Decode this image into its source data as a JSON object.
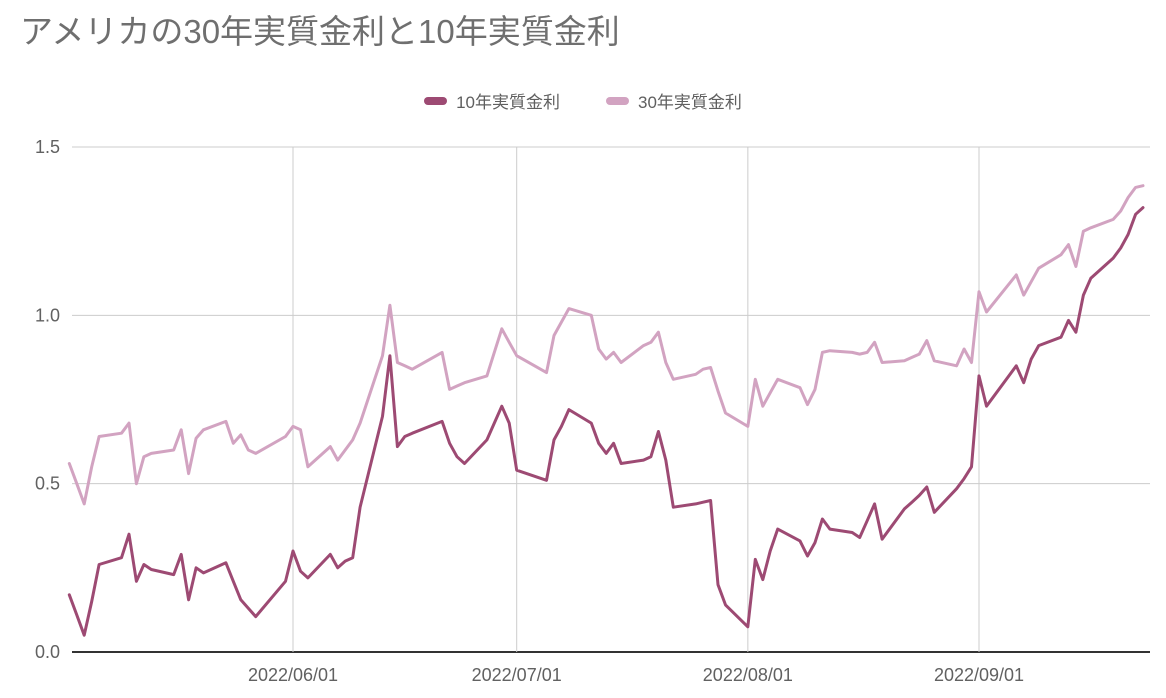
{
  "title": {
    "text": "アメリカの30年実質金利と10年実質金利"
  },
  "legend": {
    "items": [
      {
        "label": "10年実質金利",
        "color": "#9d4a73"
      },
      {
        "label": "30年実質金利",
        "color": "#d2a3c1"
      }
    ]
  },
  "chart_data": {
    "type": "line",
    "title": "アメリカの30年実質金利と10年実質金利",
    "xlabel": "",
    "ylabel": "",
    "ylim": [
      0,
      1.5
    ],
    "grid": true,
    "legend_position": "top-center",
    "background": "#ffffff",
    "gridline_color": "#cccccc",
    "baseline_color": "#333333",
    "tick_label_color": "#616161",
    "yticks": [
      {
        "value": 0,
        "label": "0.0"
      },
      {
        "value": 0.5,
        "label": "0.5"
      },
      {
        "value": 1.0,
        "label": "1.0"
      },
      {
        "value": 1.5,
        "label": "1.5"
      }
    ],
    "xticks": [
      {
        "date": "2022-06-01",
        "label": "2022/06/01"
      },
      {
        "date": "2022-07-01",
        "label": "2022/07/01"
      },
      {
        "date": "2022-08-01",
        "label": "2022/08/01"
      },
      {
        "date": "2022-09-01",
        "label": "2022/09/01"
      }
    ],
    "x_range": [
      "2022-05-02",
      "2022-09-23"
    ],
    "x": [
      "2022-05-02",
      "2022-05-03",
      "2022-05-04",
      "2022-05-05",
      "2022-05-06",
      "2022-05-09",
      "2022-05-10",
      "2022-05-11",
      "2022-05-12",
      "2022-05-13",
      "2022-05-16",
      "2022-05-17",
      "2022-05-18",
      "2022-05-19",
      "2022-05-20",
      "2022-05-23",
      "2022-05-24",
      "2022-05-25",
      "2022-05-26",
      "2022-05-27",
      "2022-05-31",
      "2022-06-01",
      "2022-06-02",
      "2022-06-03",
      "2022-06-06",
      "2022-06-07",
      "2022-06-08",
      "2022-06-09",
      "2022-06-10",
      "2022-06-13",
      "2022-06-14",
      "2022-06-15",
      "2022-06-16",
      "2022-06-17",
      "2022-06-21",
      "2022-06-22",
      "2022-06-23",
      "2022-06-24",
      "2022-06-27",
      "2022-06-28",
      "2022-06-29",
      "2022-06-30",
      "2022-07-01",
      "2022-07-05",
      "2022-07-06",
      "2022-07-07",
      "2022-07-08",
      "2022-07-11",
      "2022-07-12",
      "2022-07-13",
      "2022-07-14",
      "2022-07-15",
      "2022-07-18",
      "2022-07-19",
      "2022-07-20",
      "2022-07-21",
      "2022-07-22",
      "2022-07-25",
      "2022-07-26",
      "2022-07-27",
      "2022-07-28",
      "2022-07-29",
      "2022-08-01",
      "2022-08-02",
      "2022-08-03",
      "2022-08-04",
      "2022-08-05",
      "2022-08-08",
      "2022-08-09",
      "2022-08-10",
      "2022-08-11",
      "2022-08-12",
      "2022-08-15",
      "2022-08-16",
      "2022-08-17",
      "2022-08-18",
      "2022-08-19",
      "2022-08-22",
      "2022-08-23",
      "2022-08-24",
      "2022-08-25",
      "2022-08-26",
      "2022-08-29",
      "2022-08-30",
      "2022-08-31",
      "2022-09-01",
      "2022-09-02",
      "2022-09-06",
      "2022-09-07",
      "2022-09-08",
      "2022-09-09",
      "2022-09-12",
      "2022-09-13",
      "2022-09-14",
      "2022-09-15",
      "2022-09-16",
      "2022-09-19",
      "2022-09-20",
      "2022-09-21",
      "2022-09-22",
      "2022-09-23"
    ],
    "series": [
      {
        "key": "10y",
        "name": "10年実質金利",
        "color": "#9d4a73",
        "values": [
          0.17,
          0.11,
          0.05,
          0.15,
          0.26,
          0.28,
          0.35,
          0.21,
          0.26,
          0.245,
          0.23,
          0.29,
          0.155,
          0.25,
          0.235,
          0.265,
          0.21,
          0.155,
          0.13,
          0.105,
          0.21,
          0.3,
          0.24,
          0.22,
          0.29,
          0.25,
          0.27,
          0.28,
          0.43,
          0.7,
          0.88,
          0.61,
          0.64,
          0.65,
          0.685,
          0.62,
          0.58,
          0.56,
          0.63,
          0.68,
          0.73,
          0.68,
          0.54,
          0.51,
          0.63,
          0.67,
          0.72,
          0.68,
          0.62,
          0.59,
          0.62,
          0.56,
          0.57,
          0.58,
          0.655,
          0.57,
          0.43,
          0.44,
          0.445,
          0.45,
          0.2,
          0.14,
          0.075,
          0.275,
          0.215,
          0.3,
          0.365,
          0.33,
          0.285,
          0.325,
          0.395,
          0.365,
          0.355,
          0.34,
          0.39,
          0.44,
          0.335,
          0.425,
          0.445,
          0.465,
          0.49,
          0.415,
          0.485,
          0.515,
          0.55,
          0.82,
          0.73,
          0.85,
          0.8,
          0.87,
          0.91,
          0.935,
          0.985,
          0.95,
          1.06,
          1.11,
          1.17,
          1.2,
          1.24,
          1.3,
          1.32
        ]
      },
      {
        "key": "30y",
        "name": "30年実質金利",
        "color": "#d2a3c1",
        "values": [
          0.56,
          0.5,
          0.44,
          0.55,
          0.64,
          0.65,
          0.68,
          0.5,
          0.58,
          0.59,
          0.6,
          0.66,
          0.53,
          0.635,
          0.66,
          0.685,
          0.62,
          0.645,
          0.6,
          0.59,
          0.64,
          0.67,
          0.66,
          0.55,
          0.61,
          0.57,
          0.6,
          0.63,
          0.68,
          0.88,
          1.03,
          0.86,
          0.85,
          0.84,
          0.89,
          0.78,
          0.79,
          0.8,
          0.82,
          0.89,
          0.96,
          0.92,
          0.88,
          0.83,
          0.94,
          0.98,
          1.02,
          1.0,
          0.9,
          0.87,
          0.89,
          0.86,
          0.91,
          0.92,
          0.95,
          0.86,
          0.81,
          0.825,
          0.84,
          0.845,
          0.775,
          0.71,
          0.67,
          0.81,
          0.73,
          0.77,
          0.81,
          0.785,
          0.735,
          0.78,
          0.89,
          0.895,
          0.89,
          0.885,
          0.89,
          0.92,
          0.86,
          0.865,
          0.875,
          0.885,
          0.925,
          0.865,
          0.85,
          0.9,
          0.86,
          1.07,
          1.01,
          1.12,
          1.06,
          1.1,
          1.14,
          1.18,
          1.21,
          1.145,
          1.25,
          1.26,
          1.285,
          1.31,
          1.35,
          1.38,
          1.385
        ]
      }
    ]
  }
}
